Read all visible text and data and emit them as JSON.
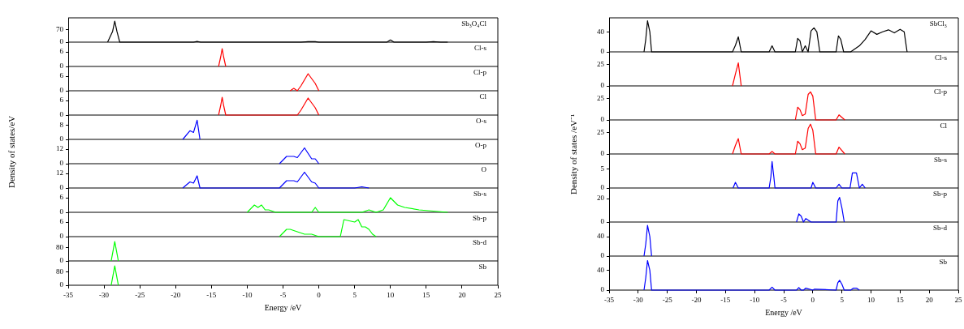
{
  "chart_data": [
    {
      "type": "line",
      "title": "Sb₃O₄Cl",
      "series": [
        {
          "color": "#000000",
          "x": [
            -29.5,
            -28.8,
            -28.5,
            -28.2,
            -27.8,
            -19,
            -17.5,
            -17,
            -16.5,
            -13.5,
            -13,
            -10,
            -6.5,
            -5,
            -2.5,
            -1.5,
            -0.5,
            0,
            3,
            7,
            9.5,
            10,
            10.5,
            15,
            16,
            17,
            18
          ],
          "values": [
            0,
            60,
            117,
            60,
            0,
            0,
            0,
            4,
            0,
            0,
            0,
            0,
            0,
            0,
            0,
            3,
            3,
            0,
            0,
            0,
            0,
            12,
            0,
            0,
            3,
            0,
            0
          ]
        }
      ],
      "xlim": [
        -35,
        25
      ],
      "ylim": [
        0,
        135
      ],
      "yticks": [
        0,
        70
      ],
      "marker": "none",
      "tick_labels": "y"
    },
    {
      "type": "line",
      "title": "Cl-s",
      "series": [
        {
          "color": "#ff0000",
          "x": [
            -14,
            -13.7,
            -13.5,
            -13.3,
            -13
          ],
          "values": [
            0,
            4,
            7.3,
            4,
            0
          ]
        }
      ],
      "xlim": [
        -35,
        25
      ],
      "ylim": [
        0,
        10
      ],
      "yticks": [
        0,
        6
      ],
      "marker": "none",
      "tick_labels": "y"
    },
    {
      "type": "line",
      "title": "Cl-p",
      "series": [
        {
          "color": "#ff0000",
          "x": [
            -4,
            -3.5,
            -3,
            -2.5,
            -1.5,
            -0.5,
            0
          ],
          "values": [
            0,
            1,
            0,
            2,
            7,
            3,
            0
          ]
        }
      ],
      "xlim": [
        -35,
        25
      ],
      "ylim": [
        0,
        10
      ],
      "yticks": [
        0,
        6
      ],
      "marker": "none",
      "tick_labels": "y"
    },
    {
      "type": "line",
      "title": "Cl",
      "series": [
        {
          "color": "#ff0000",
          "x": [
            -14,
            -13.7,
            -13.5,
            -13.3,
            -13,
            -3,
            -2.5,
            -1.5,
            -0.5,
            0
          ],
          "values": [
            0,
            4,
            7.3,
            4,
            0,
            0,
            2,
            7,
            3,
            0
          ]
        }
      ],
      "xlim": [
        -35,
        25
      ],
      "ylim": [
        0,
        10
      ],
      "yticks": [
        0,
        6
      ],
      "marker": "none",
      "tick_labels": "y"
    },
    {
      "type": "line",
      "title": "O-s",
      "series": [
        {
          "color": "#0000ff",
          "x": [
            -19,
            -18,
            -17.5,
            -17,
            -16.6
          ],
          "values": [
            0,
            5,
            4,
            11,
            0
          ]
        }
      ],
      "xlim": [
        -35,
        25
      ],
      "ylim": [
        0,
        14
      ],
      "yticks": [
        0,
        8
      ],
      "marker": "none",
      "tick_labels": "y"
    },
    {
      "type": "line",
      "title": "O-p",
      "ylabel": "Density of states/eV",
      "series": [
        {
          "color": "#0000ff",
          "x": [
            -5.5,
            -4.5,
            -3.5,
            -3,
            -2,
            -1,
            -0.5,
            0
          ],
          "values": [
            0,
            6,
            6,
            5,
            13,
            4,
            4,
            0
          ]
        }
      ],
      "xlim": [
        -35,
        25
      ],
      "ylim": [
        0,
        20
      ],
      "yticks": [
        0,
        12
      ],
      "marker": "none",
      "tick_labels": "y"
    },
    {
      "type": "line",
      "title": "O",
      "series": [
        {
          "color": "#0000ff",
          "x": [
            -19,
            -18,
            -17.5,
            -17,
            -16.6,
            -5.5,
            -4.5,
            -3.5,
            -3,
            -2,
            -1,
            -0.5,
            0,
            5,
            6,
            7
          ],
          "values": [
            0,
            5,
            4,
            10,
            0,
            0,
            6,
            6,
            5,
            13,
            5,
            4,
            0,
            0,
            1,
            0
          ]
        }
      ],
      "xlim": [
        -35,
        25
      ],
      "ylim": [
        0,
        20
      ],
      "yticks": [
        0,
        12
      ],
      "marker": "none",
      "tick_labels": "y"
    },
    {
      "type": "line",
      "title": "Sb-s",
      "series": [
        {
          "color": "#00ff00",
          "x": [
            -10,
            -9,
            -8.5,
            -8,
            -7.5,
            -7,
            -6,
            -1,
            -0.5,
            0,
            6,
            7,
            8,
            9,
            10,
            11,
            12,
            14,
            18
          ],
          "values": [
            0,
            3,
            2,
            3,
            1,
            1,
            0,
            0,
            2,
            0,
            0,
            1,
            0,
            1,
            6,
            3,
            2,
            1,
            0
          ]
        }
      ],
      "xlim": [
        -35,
        25
      ],
      "ylim": [
        0,
        10
      ],
      "yticks": [
        0,
        6
      ],
      "marker": "none",
      "tick_labels": "y"
    },
    {
      "type": "line",
      "title": "Sb-p",
      "series": [
        {
          "color": "#00ff00",
          "x": [
            -5.5,
            -4.5,
            -4,
            -3,
            -2,
            -1,
            0,
            3,
            3.5,
            5,
            5.5,
            6,
            6.5,
            7,
            7.5,
            8
          ],
          "values": [
            0,
            3,
            3,
            2,
            1,
            1,
            0,
            0,
            7,
            6,
            7,
            4,
            4,
            3,
            1,
            0
          ]
        }
      ],
      "xlim": [
        -35,
        25
      ],
      "ylim": [
        0,
        10
      ],
      "yticks": [
        0,
        6
      ],
      "marker": "none",
      "tick_labels": "y"
    },
    {
      "type": "line",
      "title": "Sb-d",
      "series": [
        {
          "color": "#00ff00",
          "x": [
            -29,
            -28.5,
            -28
          ],
          "values": [
            0,
            115,
            0
          ]
        }
      ],
      "xlim": [
        -35,
        25
      ],
      "ylim": [
        0,
        145
      ],
      "yticks": [
        0,
        80
      ],
      "marker": "none",
      "tick_labels": "y"
    },
    {
      "type": "line",
      "title": "Sb",
      "xlabel": "Energy /eV",
      "series": [
        {
          "color": "#00ff00",
          "x": [
            -29,
            -28.5,
            -28
          ],
          "values": [
            0,
            115,
            0
          ]
        }
      ],
      "xlim": [
        -35,
        25
      ],
      "xticks": [
        -35,
        -30,
        -25,
        -20,
        -15,
        -10,
        -5,
        0,
        5,
        10,
        15,
        20,
        25
      ],
      "ylim": [
        0,
        145
      ],
      "yticks": [
        0,
        80
      ],
      "marker": "none"
    },
    {
      "type": "line",
      "title": "SbCl₃",
      "series": [
        {
          "color": "#000000",
          "x": [
            -29,
            -28.7,
            -28.4,
            -28,
            -27.7,
            -13.8,
            -13.3,
            -12.8,
            -12.3,
            -7.5,
            -7,
            -6.5,
            -3,
            -2.6,
            -2.2,
            -1.8,
            -1.3,
            -0.8,
            -0.3,
            0.2,
            0.7,
            1.2,
            4,
            4.4,
            4.8,
            5.3,
            6.5,
            8,
            9,
            10,
            11,
            12,
            13,
            14,
            15,
            15.7,
            16.2
          ],
          "values": [
            0,
            25,
            62,
            40,
            0,
            0,
            13,
            30,
            0,
            0,
            12,
            0,
            0,
            27,
            22,
            0,
            12,
            0,
            42,
            48,
            40,
            0,
            0,
            32,
            25,
            0,
            0,
            12,
            25,
            42,
            35,
            40,
            44,
            38,
            45,
            40,
            0
          ]
        }
      ],
      "xlim": [
        -35,
        25
      ],
      "ylim": [
        0,
        68
      ],
      "yticks": [
        0,
        40
      ],
      "marker": "none",
      "tick_labels": "y"
    },
    {
      "type": "line",
      "title": "Cl-s",
      "series": [
        {
          "color": "#ff0000",
          "x": [
            -13.8,
            -13.3,
            -12.8,
            -12.3
          ],
          "values": [
            0,
            14,
            27,
            0
          ]
        }
      ],
      "xlim": [
        -35,
        25
      ],
      "ylim": [
        0,
        40
      ],
      "yticks": [
        0,
        25
      ],
      "marker": "none",
      "tick_labels": "y"
    },
    {
      "type": "line",
      "title": "Cl-p",
      "series": [
        {
          "color": "#ff0000",
          "x": [
            -3,
            -2.6,
            -2.2,
            -1.8,
            -1.3,
            -0.8,
            -0.4,
            0,
            0.5,
            4,
            4.5,
            5.5
          ],
          "values": [
            0,
            15,
            12,
            5,
            7,
            30,
            33,
            28,
            0,
            0,
            6,
            0
          ]
        }
      ],
      "xlim": [
        -35,
        25
      ],
      "ylim": [
        0,
        40
      ],
      "yticks": [
        0,
        25
      ],
      "marker": "none",
      "tick_labels": "y"
    },
    {
      "type": "line",
      "title": "Cl",
      "ylabel": "Density of states /eV⁻¹",
      "series": [
        {
          "color": "#ff0000",
          "x": [
            -13.8,
            -13.3,
            -12.8,
            -12.3,
            -7.5,
            -7,
            -6.5,
            -3,
            -2.6,
            -2.2,
            -1.8,
            -1.3,
            -0.8,
            -0.4,
            0,
            0.5,
            4,
            4.5,
            5.5
          ],
          "values": [
            0,
            10,
            18,
            0,
            0,
            3,
            0,
            0,
            15,
            12,
            5,
            7,
            30,
            35,
            28,
            0,
            0,
            8,
            0
          ]
        }
      ],
      "xlim": [
        -35,
        25
      ],
      "ylim": [
        0,
        40
      ],
      "yticks": [
        0,
        25
      ],
      "marker": "none",
      "tick_labels": "y"
    },
    {
      "type": "line",
      "title": "Sb-s",
      "series": [
        {
          "color": "#0000ff",
          "x": [
            -13.7,
            -13.3,
            -12.8,
            -7.5,
            -7.2,
            -7,
            -6.7,
            -6.5,
            -0.3,
            0,
            0.5,
            4,
            4.5,
            5,
            6.4,
            6.8,
            7.5,
            8,
            8.5,
            9
          ],
          "values": [
            0,
            1.5,
            0,
            0,
            3,
            7,
            3,
            0,
            0,
            1.5,
            0,
            0,
            1,
            0,
            0,
            4,
            4,
            0,
            1,
            0
          ]
        }
      ],
      "xlim": [
        -35,
        25
      ],
      "ylim": [
        0,
        9
      ],
      "yticks": [
        0,
        5
      ],
      "marker": "none",
      "tick_labels": "y"
    },
    {
      "type": "line",
      "title": "Sb-p",
      "series": [
        {
          "color": "#0000ff",
          "x": [
            -2.8,
            -2.4,
            -2,
            -1.6,
            -1.2,
            -0.3,
            4,
            4.3,
            4.6,
            5,
            5.4
          ],
          "values": [
            0,
            7,
            5,
            0,
            3,
            0,
            0,
            18,
            21,
            12,
            0
          ]
        }
      ],
      "xlim": [
        -35,
        25
      ],
      "ylim": [
        0,
        29
      ],
      "yticks": [
        0,
        20
      ],
      "marker": "none",
      "tick_labels": "y"
    },
    {
      "type": "line",
      "title": "Sb-d",
      "series": [
        {
          "color": "#0000ff",
          "x": [
            -29,
            -28.7,
            -28.4,
            -28,
            -27.7
          ],
          "values": [
            0,
            25,
            63,
            40,
            0
          ]
        }
      ],
      "xlim": [
        -35,
        25
      ],
      "ylim": [
        0,
        70
      ],
      "yticks": [
        0,
        40
      ],
      "marker": "none",
      "tick_labels": "y"
    },
    {
      "type": "line",
      "title": "Sb",
      "xlabel": "Energy /eV",
      "series": [
        {
          "color": "#0000ff",
          "x": [
            -29,
            -28.7,
            -28.4,
            -28,
            -27.7,
            -7.5,
            -7,
            -6.5,
            -2.8,
            -2.4,
            -2,
            -1.6,
            -1.2,
            0,
            0.3,
            4,
            4.3,
            4.6,
            5,
            5.4,
            6.5,
            7,
            7.5,
            8
          ],
          "values": [
            0,
            25,
            60,
            40,
            0,
            0,
            6,
            0,
            0,
            5,
            0,
            0,
            4,
            0,
            2,
            0,
            15,
            20,
            12,
            0,
            0,
            4,
            4,
            0
          ]
        }
      ],
      "xlim": [
        -35,
        25
      ],
      "xticks": [
        -35,
        -30,
        -25,
        -20,
        -15,
        -10,
        -5,
        0,
        5,
        10,
        15,
        20,
        25
      ],
      "ylim": [
        0,
        69
      ],
      "yticks": [
        0,
        40
      ],
      "marker": "none"
    }
  ]
}
